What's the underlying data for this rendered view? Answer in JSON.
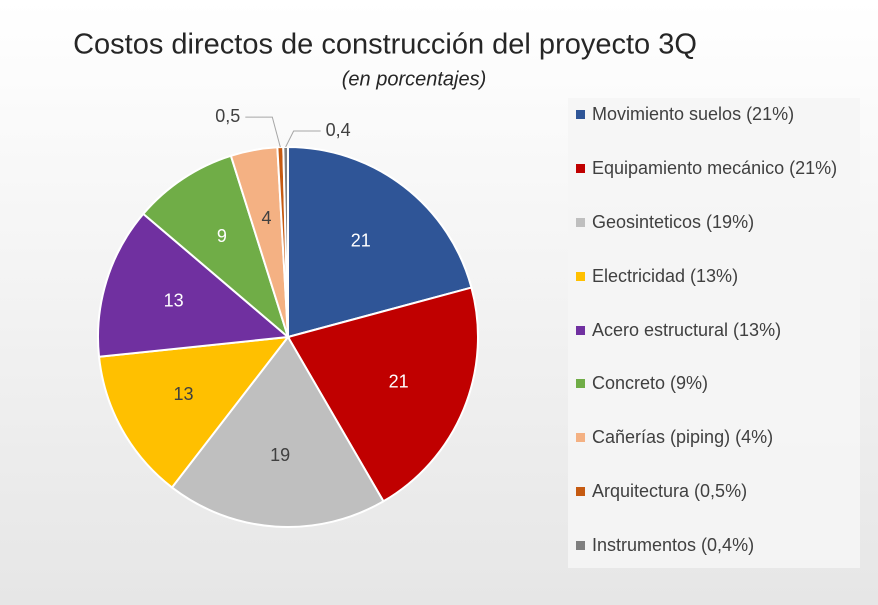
{
  "chart_data": {
    "type": "pie",
    "title": "Costos directos de construcción del proyecto 3Q",
    "subtitle": "(en porcentajes)",
    "categories": [
      "Movimiento suelos (21%)",
      "Equipamiento mecánico (21%)",
      "Geosinteticos (19%)",
      "Electricidad (13%)",
      "Acero estructural (13%)",
      "Concreto (9%)",
      "Cañerías (piping) (4%)",
      "Arquitectura (0,5%)",
      "Instrumentos (0,4%)"
    ],
    "values": [
      21,
      21,
      19,
      13,
      13,
      9,
      4,
      0.5,
      0.4
    ],
    "value_labels": [
      "21",
      "21",
      "19",
      "13",
      "13",
      "9",
      "4",
      "0,5",
      "0,4"
    ],
    "colors": [
      "#2f5597",
      "#c00000",
      "#bfbfbf",
      "#ffc000",
      "#7030a0",
      "#70ad47",
      "#f4b183",
      "#c55a11",
      "#7f7f7f"
    ],
    "legend": "right"
  }
}
